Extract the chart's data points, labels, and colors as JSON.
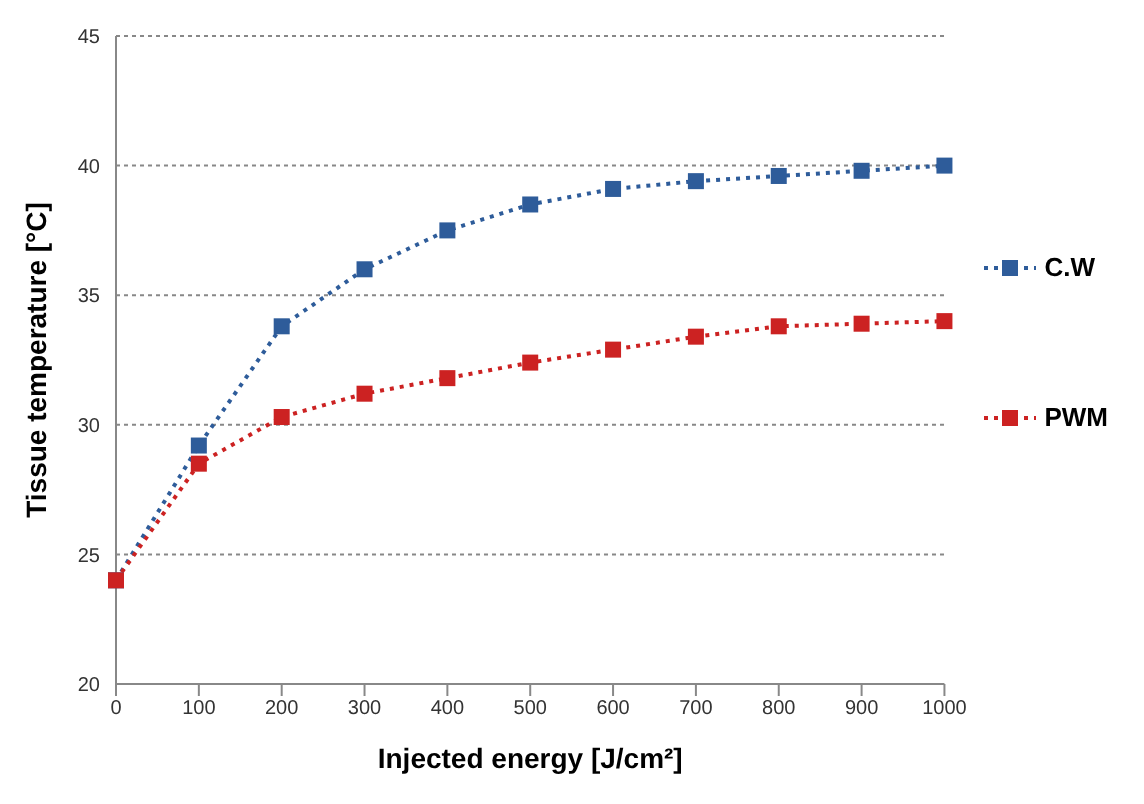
{
  "chart_data": {
    "type": "line",
    "xlabel": "Injected energy [J/cm²]",
    "ylabel": "Tissue temperature [°C]",
    "x": [
      0,
      100,
      200,
      300,
      400,
      500,
      600,
      700,
      800,
      900,
      1000
    ],
    "series": [
      {
        "name": "C.W",
        "color": "#2e5c9a",
        "values": [
          24,
          29.2,
          33.8,
          36,
          37.5,
          38.5,
          39.1,
          39.4,
          39.6,
          39.8,
          40.0
        ]
      },
      {
        "name": "PWM",
        "color": "#cc2222",
        "values": [
          24,
          28.5,
          30.3,
          31.2,
          31.8,
          32.4,
          32.9,
          33.4,
          33.8,
          33.9,
          34.0
        ]
      }
    ],
    "xlim": [
      0,
      1000
    ],
    "xticks": [
      0,
      100,
      200,
      300,
      400,
      500,
      600,
      700,
      800,
      900,
      1000
    ],
    "ylim": [
      20,
      45
    ],
    "yticks": [
      20,
      25,
      30,
      35,
      40,
      45
    ],
    "grid": "y",
    "legend": "right",
    "marker": "square",
    "line_style": "dotted"
  }
}
